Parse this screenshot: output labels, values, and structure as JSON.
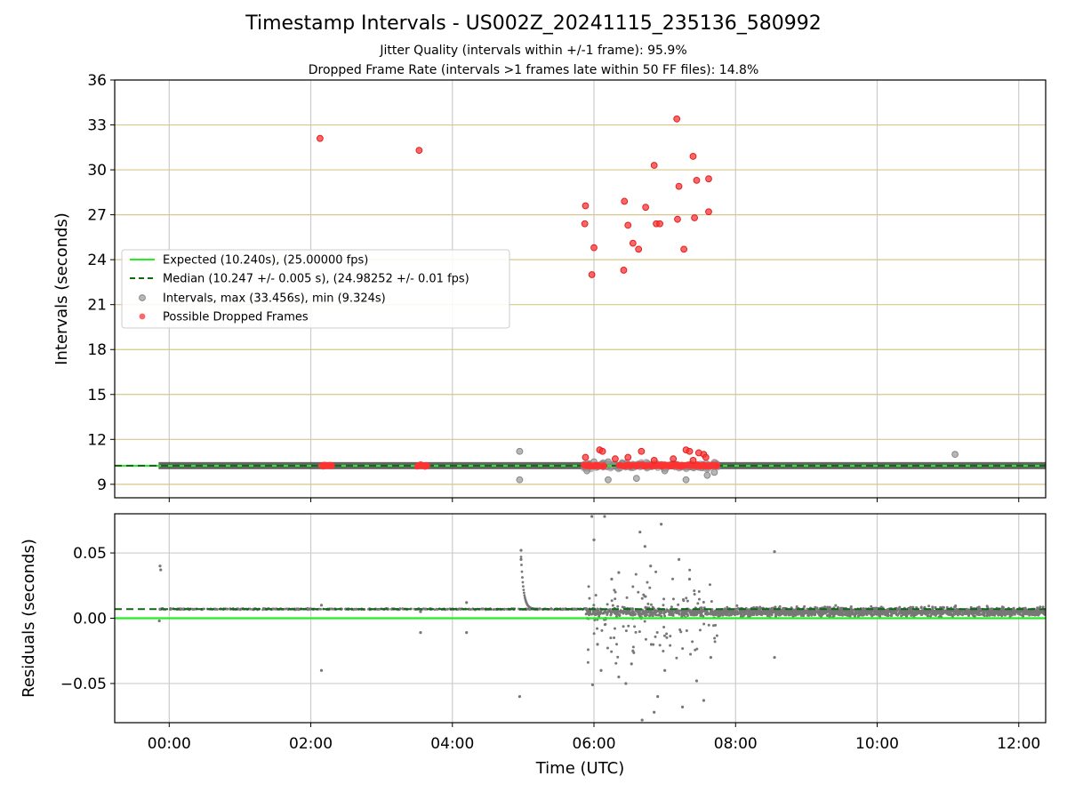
{
  "title": "Timestamp Intervals - US002Z_20241115_235136_580992",
  "subtitle1": "Jitter Quality (intervals within +/-1 frame): 95.9%",
  "subtitle2": "Dropped Frame Rate (intervals >1 frames late within 50 FF files): 14.8%",
  "colors": {
    "expected": "#22ee22",
    "median": "#116611",
    "intervals": "#999999",
    "dropped": "#ff3333",
    "residuals": "#777777",
    "hgrid_top": "#d8c68a",
    "grid": "#cccccc"
  },
  "chart_data": [
    {
      "type": "scatter",
      "xlabel": "",
      "ylabel": "Intervals (seconds)",
      "xlim": [
        -0.77,
        12.38
      ],
      "ylim": [
        8.1,
        36
      ],
      "yticks": [
        9,
        12,
        15,
        18,
        21,
        24,
        27,
        30,
        33,
        36
      ],
      "ytick_labels": [
        "9",
        "12",
        "15",
        "18",
        "21",
        "24",
        "27",
        "30",
        "33",
        "36"
      ],
      "xticks": [
        0,
        2,
        4,
        6,
        8,
        10,
        12
      ],
      "grid": true,
      "legend_position": "middle-left",
      "legend": [
        "Expected (10.240s), (25.00000 fps)",
        "Median (10.247 +/- 0.005 s), (24.98252 +/- 0.01 fps)",
        "Intervals, max (33.456s), min (9.324s)",
        "Possible Dropped Frames"
      ],
      "expected_value": 10.24,
      "median_value": 10.247,
      "baseline_band": {
        "x": [
          -0.15,
          12.38
        ],
        "y": 10.247
      },
      "interval_outliers": [
        [
          4.95,
          11.2
        ],
        [
          4.95,
          9.3
        ],
        [
          6.0,
          10.5
        ],
        [
          5.9,
          9.9
        ],
        [
          6.2,
          9.3
        ],
        [
          6.6,
          9.4
        ],
        [
          7.3,
          9.3
        ],
        [
          7.6,
          9.6
        ],
        [
          6.2,
          10.5
        ],
        [
          11.1,
          11.0
        ],
        [
          7.0,
          9.9
        ],
        [
          7.7,
          9.8
        ]
      ],
      "dropped_frames": [
        [
          2.13,
          32.1
        ],
        [
          3.53,
          31.3
        ],
        [
          5.88,
          27.6
        ],
        [
          5.87,
          26.4
        ],
        [
          5.97,
          23.0
        ],
        [
          6.0,
          24.8
        ],
        [
          6.42,
          23.3
        ],
        [
          6.43,
          27.9
        ],
        [
          6.48,
          26.3
        ],
        [
          6.55,
          25.1
        ],
        [
          6.63,
          24.7
        ],
        [
          6.73,
          27.5
        ],
        [
          6.85,
          30.3
        ],
        [
          6.88,
          26.4
        ],
        [
          6.93,
          26.4
        ],
        [
          7.17,
          33.4
        ],
        [
          7.18,
          26.7
        ],
        [
          7.2,
          28.9
        ],
        [
          7.27,
          24.7
        ],
        [
          7.4,
          30.9
        ],
        [
          7.42,
          26.8
        ],
        [
          7.45,
          29.3
        ],
        [
          7.62,
          29.4
        ],
        [
          7.62,
          27.2
        ],
        [
          5.88,
          10.8
        ],
        [
          6.08,
          11.3
        ],
        [
          6.12,
          11.2
        ],
        [
          6.48,
          10.8
        ],
        [
          6.67,
          11.2
        ],
        [
          7.3,
          11.3
        ],
        [
          7.35,
          11.2
        ],
        [
          7.48,
          11.1
        ],
        [
          7.55,
          11.0
        ],
        [
          7.58,
          10.8
        ],
        [
          6.3,
          10.7
        ],
        [
          6.85,
          10.6
        ],
        [
          7.12,
          10.7
        ],
        [
          7.4,
          10.6
        ]
      ],
      "dropped_clusters": [
        {
          "x_range": [
            2.13,
            2.3
          ],
          "y": 10.25
        },
        {
          "x_range": [
            3.5,
            3.65
          ],
          "y": 10.25
        },
        {
          "x_range": [
            5.85,
            6.15
          ],
          "y": 10.25
        },
        {
          "x_range": [
            6.35,
            7.75
          ],
          "y": 10.25
        }
      ]
    },
    {
      "type": "scatter",
      "xlabel": "Time (UTC)",
      "ylabel": "Residuals (seconds)",
      "xlim": [
        -0.77,
        12.38
      ],
      "ylim": [
        -0.08,
        0.08
      ],
      "yticks": [
        -0.05,
        0.0,
        0.05
      ],
      "ytick_labels": [
        "−0.05",
        "0.00",
        "0.05"
      ],
      "xticks": [
        0,
        2,
        4,
        6,
        8,
        10,
        12
      ],
      "xtick_labels": [
        "00:00",
        "02:00",
        "04:00",
        "06:00",
        "08:00",
        "10:00",
        "12:00"
      ],
      "grid": true,
      "expected_residual": 0.0,
      "median_residual": 0.007,
      "stable_band_mean": 0.007,
      "post_0745_band_mean": 0.005,
      "outliers": [
        [
          -0.13,
          0.04
        ],
        [
          -0.12,
          0.037
        ],
        [
          -0.14,
          -0.002
        ],
        [
          2.15,
          -0.04
        ],
        [
          2.15,
          0.01
        ],
        [
          3.55,
          -0.011
        ],
        [
          3.55,
          0.005
        ],
        [
          4.2,
          0.012
        ],
        [
          4.2,
          -0.011
        ],
        [
          4.97,
          0.052
        ],
        [
          4.97,
          0.045
        ],
        [
          4.95,
          -0.06
        ],
        [
          5.97,
          0.078
        ],
        [
          5.98,
          -0.051
        ],
        [
          6.15,
          0.078
        ],
        [
          6.35,
          -0.045
        ],
        [
          6.45,
          -0.05
        ],
        [
          6.53,
          -0.035
        ],
        [
          6.65,
          0.066
        ],
        [
          6.68,
          -0.078
        ],
        [
          6.72,
          0.055
        ],
        [
          6.85,
          -0.072
        ],
        [
          6.95,
          0.072
        ],
        [
          7.25,
          -0.068
        ],
        [
          7.2,
          0.045
        ],
        [
          7.55,
          -0.063
        ],
        [
          7.45,
          -0.048
        ],
        [
          8.55,
          0.051
        ],
        [
          8.55,
          -0.03
        ],
        [
          6.0,
          0.06
        ],
        [
          6.05,
          -0.02
        ],
        [
          6.25,
          0.03
        ],
        [
          6.35,
          0.035
        ],
        [
          6.55,
          -0.025
        ],
        [
          6.8,
          0.04
        ],
        [
          7.0,
          -0.04
        ],
        [
          7.35,
          0.03
        ],
        [
          7.65,
          -0.03
        ],
        [
          6.1,
          -0.04
        ],
        [
          6.9,
          -0.06
        ]
      ]
    }
  ]
}
